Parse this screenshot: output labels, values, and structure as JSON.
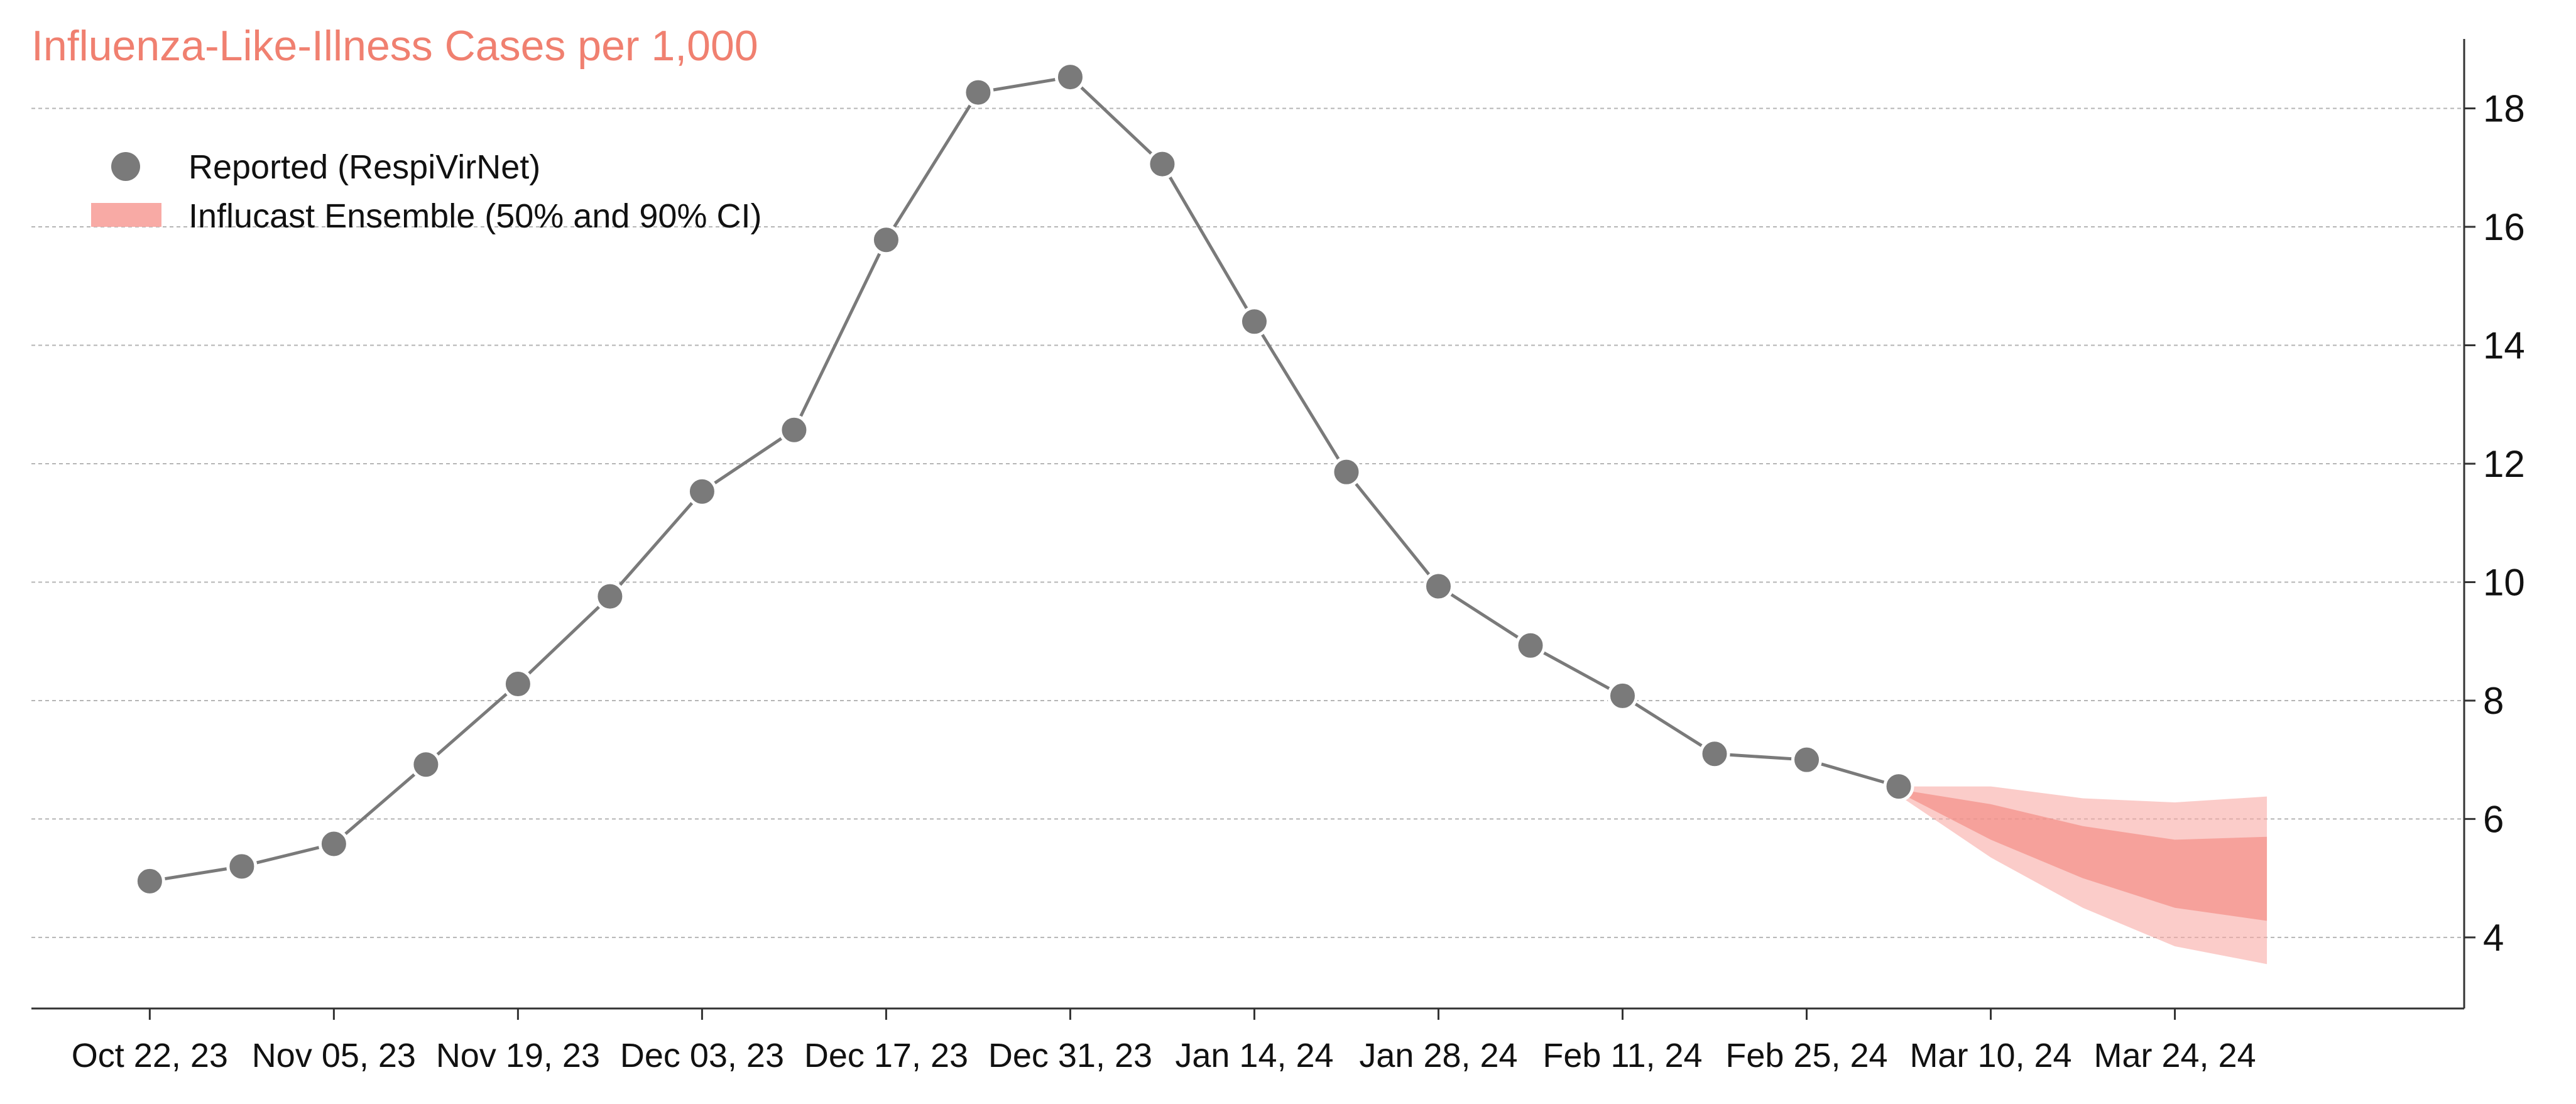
{
  "chart_data": {
    "type": "line",
    "title": "Influenza-Like-Illness Cases per 1,000",
    "xlabel": "",
    "ylabel": "",
    "x_tick_labels": [
      "Oct 22, 23",
      "Nov 05, 23",
      "Nov 19, 23",
      "Dec 03, 23",
      "Dec 17, 23",
      "Dec 31, 23",
      "Jan 14, 24",
      "Jan 28, 24",
      "Feb 11, 24",
      "Feb 25, 24",
      "Mar 10, 24",
      "Mar 24, 24"
    ],
    "x_tick_dates": [
      "2023-10-22",
      "2023-11-05",
      "2023-11-19",
      "2023-12-03",
      "2023-12-17",
      "2023-12-31",
      "2024-01-14",
      "2024-01-28",
      "2024-02-11",
      "2024-02-25",
      "2024-03-10",
      "2024-03-24"
    ],
    "y_ticks": [
      4,
      6,
      8,
      10,
      12,
      14,
      16,
      18
    ],
    "ylim": [
      2.8,
      19.3
    ],
    "xlim": [
      "2023-10-13",
      "2024-04-15"
    ],
    "y_axis_side": "right",
    "grid": "horizontal dashed",
    "legend_placement": "top-left",
    "series": [
      {
        "name": "Reported (RespiVirNet)",
        "kind": "line-with-markers",
        "color": "#7a7a7a",
        "x": [
          "2023-10-22",
          "2023-10-29",
          "2023-11-05",
          "2023-11-12",
          "2023-11-19",
          "2023-11-26",
          "2023-12-03",
          "2023-12-10",
          "2023-12-17",
          "2023-12-24",
          "2023-12-31",
          "2024-01-07",
          "2024-01-14",
          "2024-01-21",
          "2024-01-28",
          "2024-02-04",
          "2024-02-11",
          "2024-02-18",
          "2024-02-25",
          "2024-03-03"
        ],
        "y": [
          4.95,
          5.2,
          5.58,
          6.92,
          8.28,
          9.76,
          11.53,
          12.57,
          15.78,
          18.27,
          18.53,
          17.06,
          14.4,
          11.86,
          9.93,
          8.93,
          8.08,
          7.1,
          7.0,
          6.55
        ]
      },
      {
        "name": "Influcast Ensemble (50% and 90% CI)",
        "kind": "interval-band",
        "color": "#f8aaa5",
        "x": [
          "2024-03-03",
          "2024-03-10",
          "2024-03-17",
          "2024-03-24",
          "2024-03-31"
        ],
        "median": [
          6.5,
          5.95,
          5.45,
          5.1,
          5.0
        ],
        "ci50_low": [
          6.45,
          5.65,
          5.0,
          4.5,
          4.28
        ],
        "ci50_high": [
          6.5,
          6.25,
          5.88,
          5.65,
          5.7
        ],
        "ci90_low": [
          6.4,
          5.35,
          4.5,
          3.85,
          3.55
        ],
        "ci90_high": [
          6.55,
          6.55,
          6.35,
          6.28,
          6.38
        ]
      }
    ]
  },
  "colors": {
    "title": "#f08070",
    "reported": "#7a7a7a",
    "band_90": "#f8aaa5",
    "band_50": "#f28a82",
    "grid": "#b5b5b5",
    "axis": "#333333"
  }
}
